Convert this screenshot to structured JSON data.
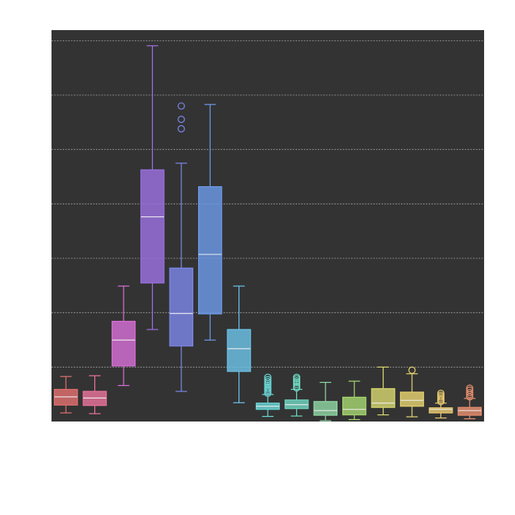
{
  "chart_data": {
    "type": "box",
    "title": "",
    "xlabel": "",
    "ylabel": "",
    "ylim": [
      0,
      1000
    ],
    "yticks": [
      0,
      139,
      278,
      417,
      556,
      695,
      834,
      973
    ],
    "grid": true,
    "legend": "none",
    "style": {
      "background": "#333333",
      "grid_color": "#9a9a9a",
      "page_background": "#ffffff"
    },
    "boxes": [
      {
        "color": "#e06f6f",
        "whisker_low": 22,
        "q1": 42,
        "median": 63,
        "q3": 82,
        "whisker_high": 115,
        "outliers": []
      },
      {
        "color": "#e9739a",
        "whisker_low": 20,
        "q1": 41,
        "median": 60,
        "q3": 77,
        "whisker_high": 117,
        "outliers": []
      },
      {
        "color": "#d66fd6",
        "whisker_low": 92,
        "q1": 142,
        "median": 208,
        "q3": 256,
        "whisker_high": 346,
        "outliers": []
      },
      {
        "color": "#9b71e0",
        "whisker_low": 235,
        "q1": 354,
        "median": 523,
        "q3": 643,
        "whisker_high": 960,
        "outliers": []
      },
      {
        "color": "#7b86e6",
        "whisker_low": 77,
        "q1": 193,
        "median": 276,
        "q3": 392,
        "whisker_high": 660,
        "outliers": [
          748,
          772,
          806
        ]
      },
      {
        "color": "#6c9ae8",
        "whisker_low": 208,
        "q1": 275,
        "median": 427,
        "q3": 600,
        "whisker_high": 810,
        "outliers": []
      },
      {
        "color": "#6cc2e8",
        "whisker_low": 48,
        "q1": 128,
        "median": 186,
        "q3": 235,
        "whisker_high": 346,
        "outliers": []
      },
      {
        "color": "#6ad6d6",
        "whisker_low": 13,
        "q1": 31,
        "median": 39,
        "q3": 47,
        "whisker_high": 69,
        "outliers": [
          72,
          76,
          80,
          84,
          88,
          93,
          97,
          102,
          107,
          113
        ]
      },
      {
        "color": "#6fd6c0",
        "whisker_low": 14,
        "q1": 33,
        "median": 43,
        "q3": 55,
        "whisker_high": 82,
        "outliers": [
          86,
          90,
          95,
          100,
          104,
          109,
          113
        ]
      },
      {
        "color": "#8fd6a4",
        "whisker_low": 2,
        "q1": 16,
        "median": 28,
        "q3": 51,
        "whisker_high": 100,
        "outliers": []
      },
      {
        "color": "#a6d66f",
        "whisker_low": 5,
        "q1": 17,
        "median": 31,
        "q3": 62,
        "whisker_high": 103,
        "outliers": []
      },
      {
        "color": "#d6d66f",
        "whisker_low": 17,
        "q1": 36,
        "median": 47,
        "q3": 84,
        "whisker_high": 139,
        "outliers": []
      },
      {
        "color": "#e6d26f",
        "whisker_low": 12,
        "q1": 39,
        "median": 54,
        "q3": 75,
        "whisker_high": 122,
        "outliers": [
          131
        ]
      },
      {
        "color": "#e6c86f",
        "whisker_low": 9,
        "q1": 22,
        "median": 31,
        "q3": 35,
        "whisker_high": 47,
        "outliers": [
          51,
          55,
          59,
          63,
          67,
          72
        ]
      },
      {
        "color": "#e68f6f",
        "whisker_low": 7,
        "q1": 16,
        "median": 28,
        "q3": 36,
        "whisker_high": 59,
        "outliers": [
          63,
          69,
          74,
          80,
          85
        ]
      }
    ]
  }
}
